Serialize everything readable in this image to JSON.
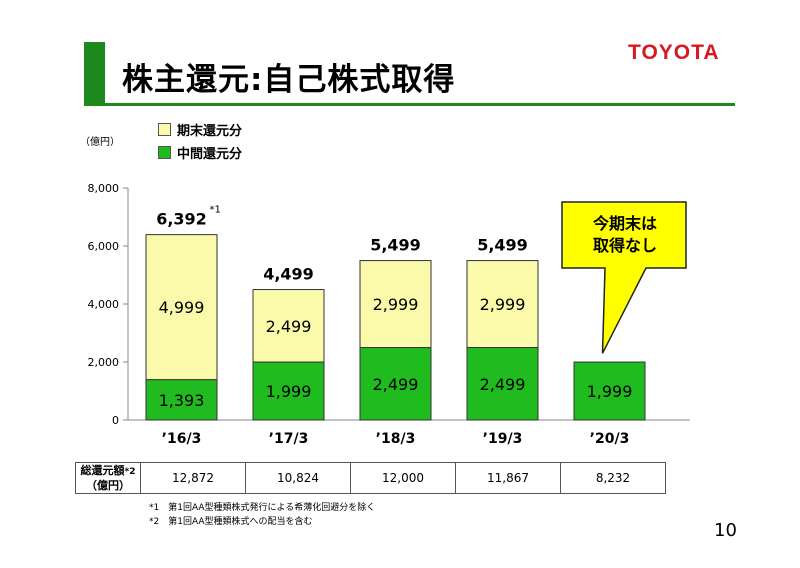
{
  "header": {
    "title": "株主還元:自己株式取得",
    "logo": "TOYOTA",
    "brand_color": "#1e8a1e",
    "logo_color": "#d71920"
  },
  "unit_label": "（億円）",
  "legend": [
    {
      "label": "期末還元分",
      "color": "#fafaaa"
    },
    {
      "label": "中間還元分",
      "color": "#1fbb1f"
    }
  ],
  "callout": {
    "line1": "今期末は",
    "line2": "取得なし",
    "color": "#ffff00"
  },
  "chart_data": {
    "type": "bar",
    "stacked": true,
    "categories": [
      "’16/3",
      "’17/3",
      "’18/3",
      "’19/3",
      "’20/3"
    ],
    "series": [
      {
        "name": "中間還元分",
        "values": [
          1393,
          1999,
          2499,
          2499,
          1999
        ]
      },
      {
        "name": "期末還元分",
        "values": [
          4999,
          2499,
          2999,
          2999,
          0
        ]
      }
    ],
    "segment_labels": {
      "中間還元分": [
        "1,393",
        "1,999",
        "2,499",
        "2,499",
        "1,999"
      ],
      "期末還元分": [
        "4,999",
        "2,499",
        "2,999",
        "2,999",
        ""
      ]
    },
    "totals": [
      "6,392",
      "4,499",
      "5,499",
      "5,499",
      ""
    ],
    "total_notes": [
      "*1",
      "",
      "",
      "",
      ""
    ],
    "ylim": [
      0,
      8000
    ],
    "yticks": [
      0,
      2000,
      4000,
      6000,
      8000
    ],
    "ytick_labels": [
      "0",
      "2,000",
      "4,000",
      "6,000",
      "8,000"
    ],
    "grid": false,
    "legend_position": "top-left"
  },
  "totals_table": {
    "header_line1": "総還元額",
    "header_note": "*2",
    "header_line2": "（億円）",
    "values": [
      "12,872",
      "10,824",
      "12,000",
      "11,867",
      "8,232"
    ]
  },
  "footnotes": [
    "*1　第1回AA型種類株式発行による希薄化回避分を除く",
    "*2　第1回AA型種類株式への配当を含む"
  ],
  "page_number": "10"
}
